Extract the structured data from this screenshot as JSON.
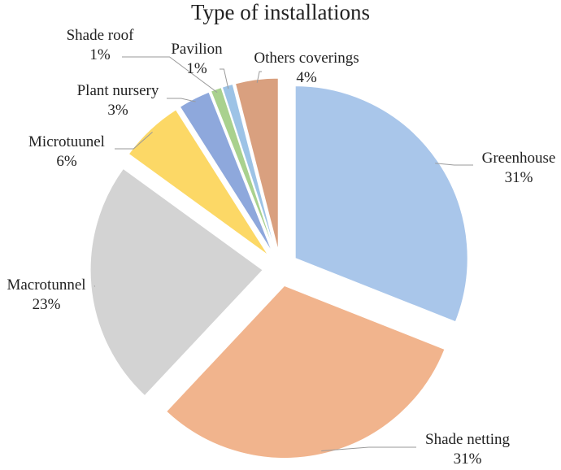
{
  "chart_data": {
    "type": "pie",
    "title": "Type of installations",
    "slices": [
      {
        "label": "Greenhouse",
        "value": 31,
        "pct": "31%",
        "color": "#a9c6ea"
      },
      {
        "label": "Shade netting",
        "value": 31,
        "pct": "31%",
        "color": "#f1b48d"
      },
      {
        "label": "Macrotunnel",
        "value": 23,
        "pct": "23%",
        "color": "#d3d3d3"
      },
      {
        "label": "Microtuunel",
        "value": 6,
        "pct": "6%",
        "color": "#fcd866"
      },
      {
        "label": "Plant nursery",
        "value": 3,
        "pct": "3%",
        "color": "#8ea8dc"
      },
      {
        "label": "Shade roof",
        "value": 1,
        "pct": "1%",
        "color": "#a9d18e"
      },
      {
        "label": "Pavilion",
        "value": 1,
        "pct": "1%",
        "color": "#9dc3e6"
      },
      {
        "label": "Others coverings",
        "value": 4,
        "pct": "4%",
        "color": "#d9a07f"
      }
    ]
  }
}
